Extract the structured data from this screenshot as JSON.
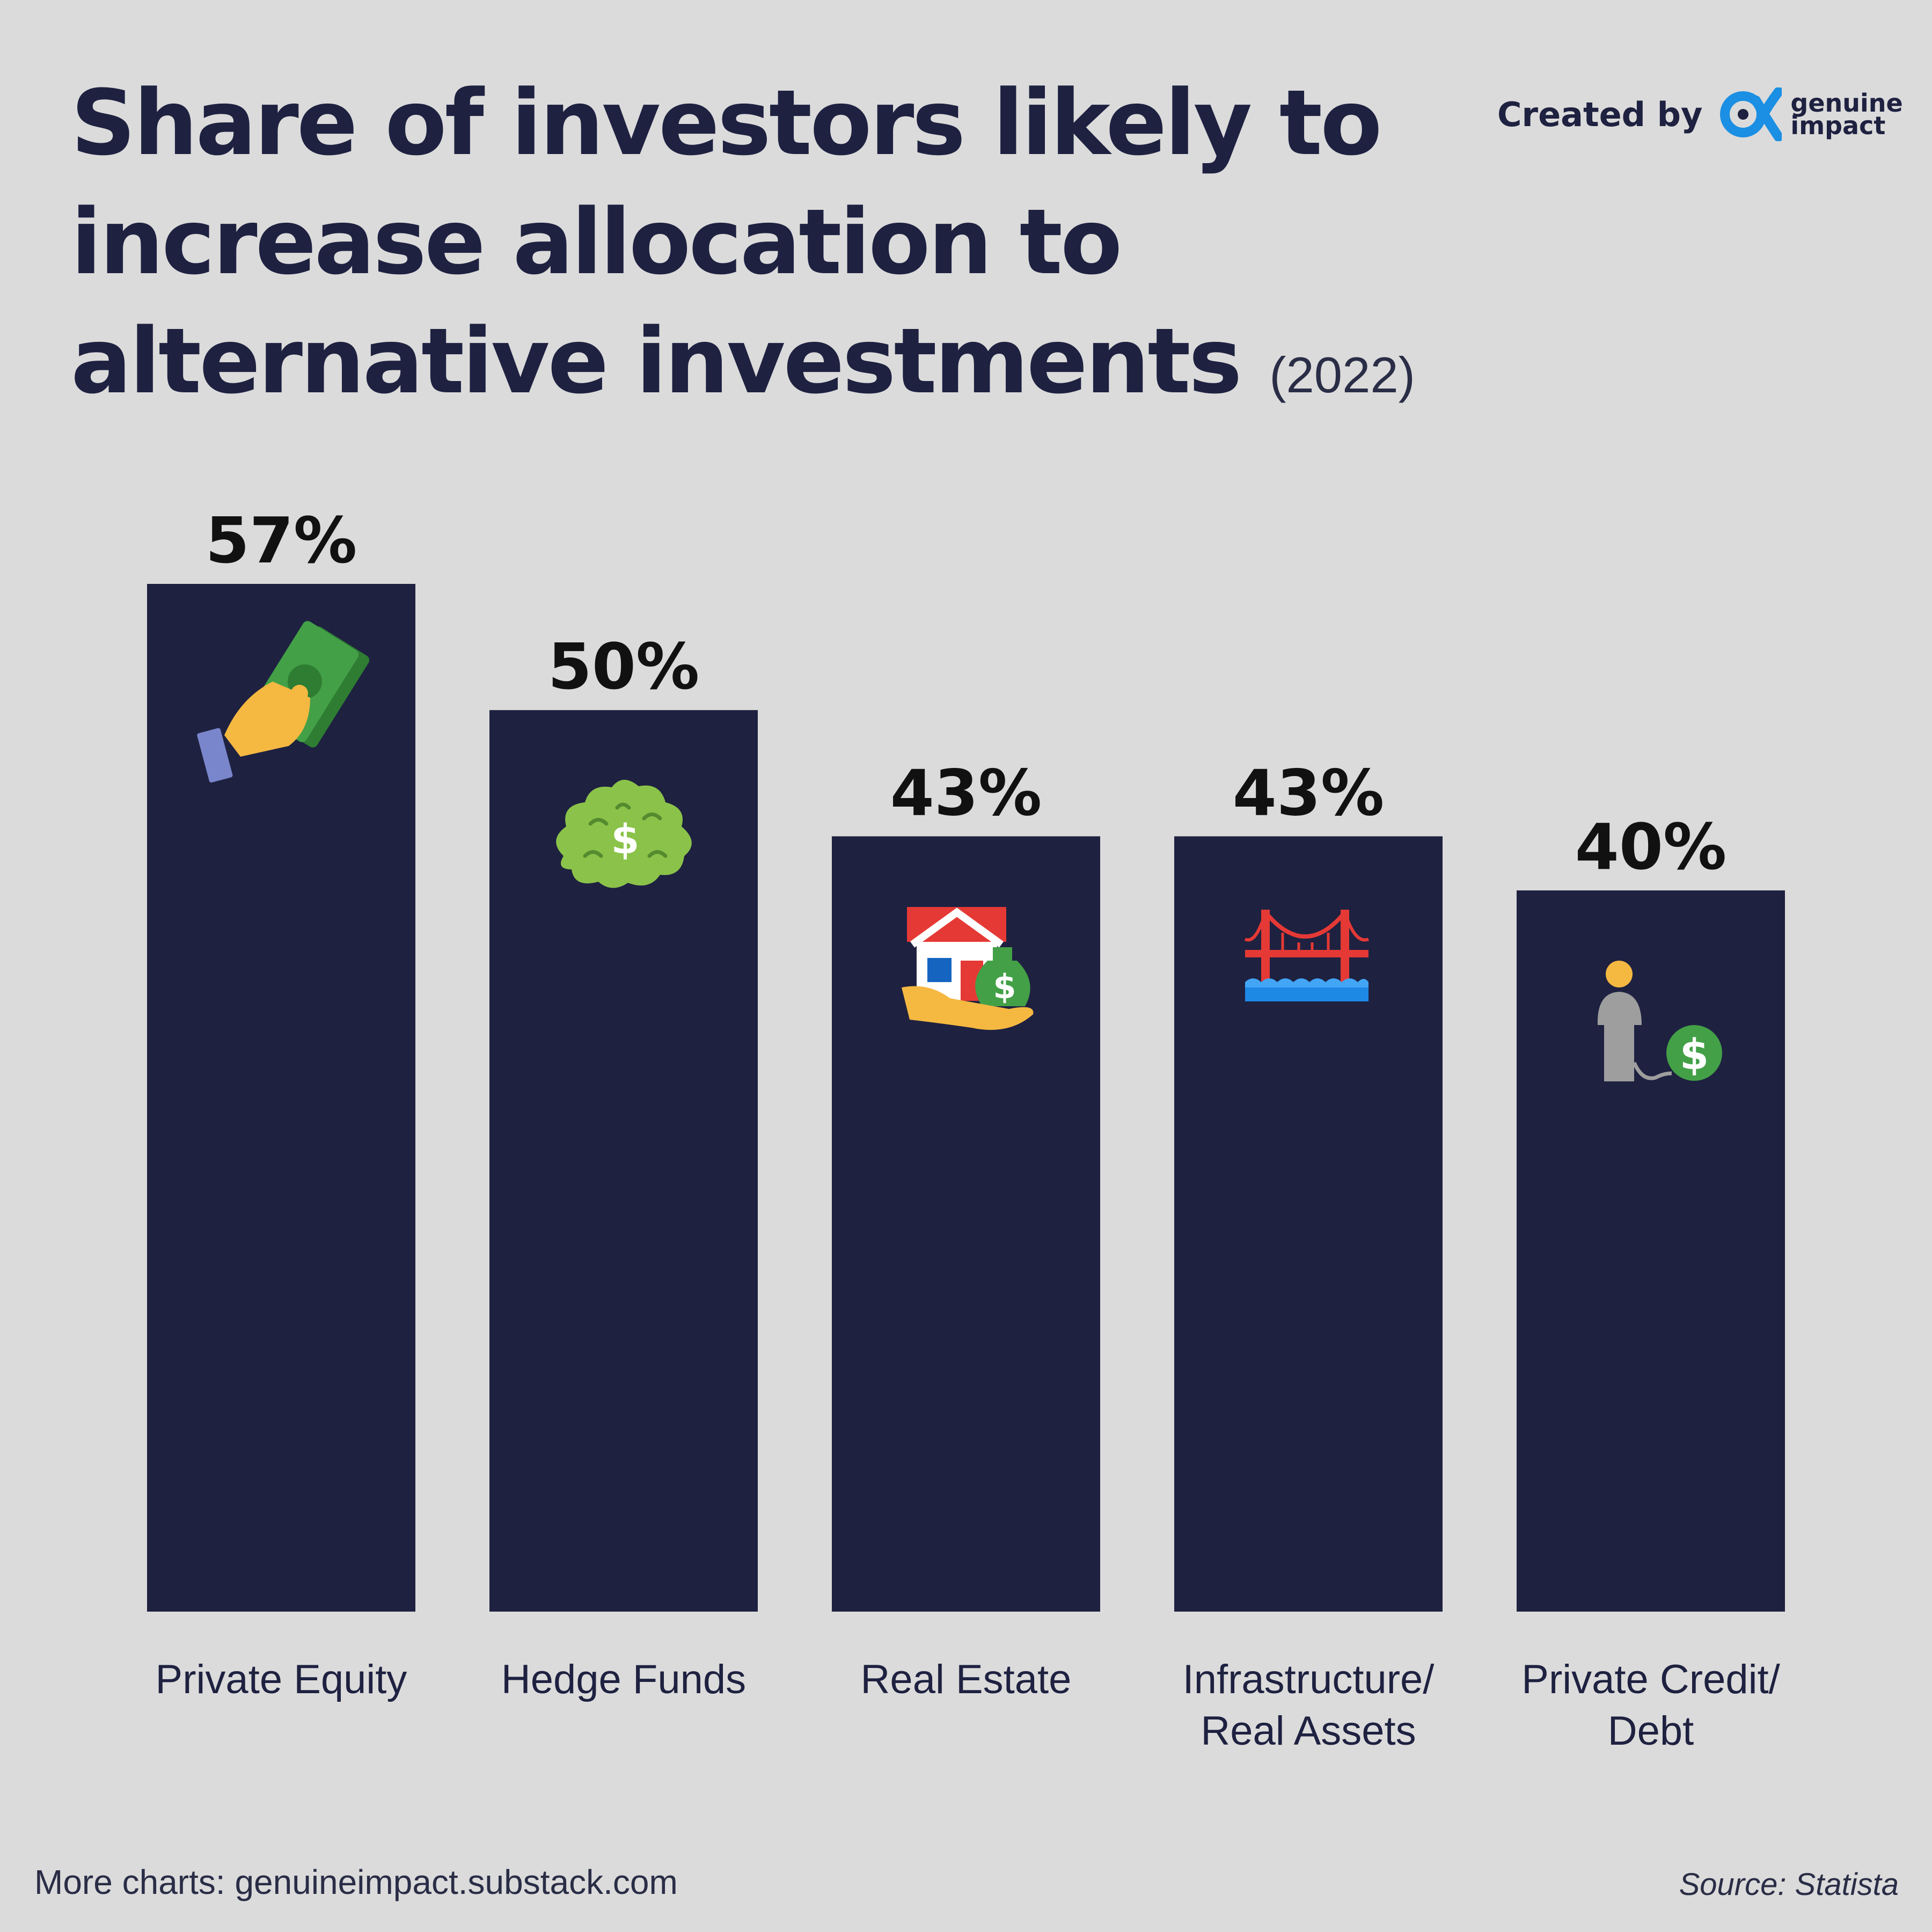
{
  "title": {
    "lines": [
      "Share of investors likely to",
      "increase allocation to",
      "alternative investments"
    ],
    "year": "(2022)"
  },
  "credit": {
    "label": "Created by",
    "brand_line1": "genuine",
    "brand_line2": "impact",
    "logo_icon": "alpha-logo-icon"
  },
  "footer": {
    "more_charts": "More charts: genuineimpact.substack.com",
    "source": "Source: Statista"
  },
  "colors": {
    "background": "#dbdbdb",
    "bar": "#1e2140",
    "text": "#1e2140",
    "accent": "#1a8fe3"
  },
  "chart_data": {
    "type": "bar",
    "title": "Share of investors likely to increase allocation to alternative investments (2022)",
    "categories": [
      "Private Equity",
      "Hedge Funds",
      "Real Estate",
      "Infrastructure/\nReal Assets",
      "Private Credit/\nDebt"
    ],
    "values": [
      57,
      50,
      43,
      43,
      40
    ],
    "value_labels": [
      "57%",
      "50%",
      "43%",
      "43%",
      "40%"
    ],
    "icons": [
      "hand-cash-icon",
      "money-bush-icon",
      "house-money-icon",
      "bridge-icon",
      "person-money-icon"
    ],
    "ylim": [
      0,
      57
    ],
    "grid": false,
    "legend": "none"
  }
}
